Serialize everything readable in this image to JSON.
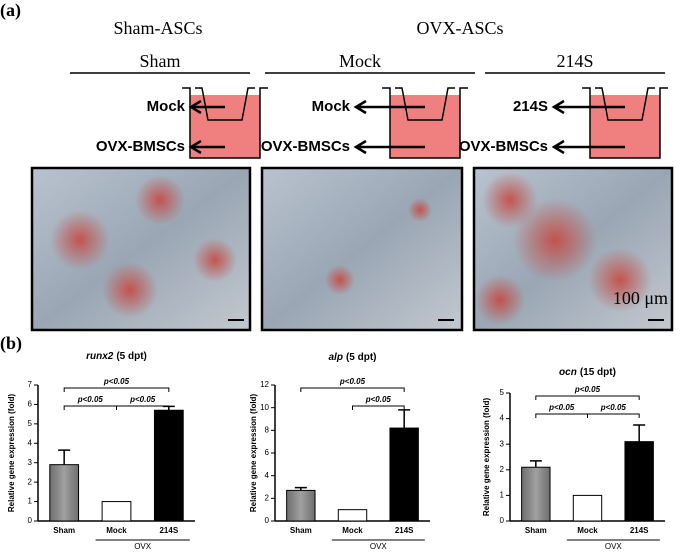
{
  "panel_a": {
    "label": "(a)",
    "groups": [
      "Sham-ASCs",
      "OVX-ASCs"
    ],
    "conditions": [
      "Sham",
      "Mock",
      "214S"
    ],
    "schematics": [
      {
        "top": "Mock",
        "bottom": "OVX-BMSCs"
      },
      {
        "top": "Mock",
        "bottom": "OVX-BMSCs"
      },
      {
        "top": "214S",
        "bottom": "OVX-BMSCs"
      }
    ],
    "scale_bar": "100 μm"
  },
  "panel_b": {
    "label": "(b)"
  },
  "chart_data": [
    {
      "type": "bar",
      "title_gene": "runx2",
      "title_note": "(5 dpt)",
      "y_label": "Relative gene expression (fold)",
      "categories": [
        "Sham",
        "Mock",
        "214S"
      ],
      "values": [
        2.9,
        1.0,
        5.7
      ],
      "errors": [
        0.75,
        0,
        0.2
      ],
      "colors": [
        "#8a8a8a",
        "#ffffff",
        "#000000"
      ],
      "ylim": [
        0,
        7
      ],
      "yticks": [
        0,
        1,
        2,
        3,
        4,
        5,
        6,
        7
      ],
      "significance": [
        {
          "label": "p<0.05",
          "between": [
            "Sham",
            "214S"
          ]
        },
        {
          "label": "p<0.05",
          "between": [
            "Sham",
            "Mock"
          ]
        },
        {
          "label": "p<0.05",
          "between": [
            "Mock",
            "214S"
          ]
        }
      ],
      "group": {
        "label": "OVX",
        "members": [
          "Mock",
          "214S"
        ]
      }
    },
    {
      "type": "bar",
      "title_gene": "alp",
      "title_note": "(5 dpt)",
      "y_label": "Relative gene expression (fold)",
      "categories": [
        "Sham",
        "Mock",
        "214S"
      ],
      "values": [
        2.7,
        1.0,
        8.2
      ],
      "errors": [
        0.25,
        0,
        1.6
      ],
      "colors": [
        "#8a8a8a",
        "#ffffff",
        "#000000"
      ],
      "ylim": [
        0,
        12
      ],
      "yticks": [
        0,
        2,
        4,
        6,
        8,
        10,
        12
      ],
      "significance": [
        {
          "label": "p<0.05",
          "between": [
            "Sham",
            "214S"
          ]
        },
        {
          "label": "p<0.05",
          "between": [
            "Mock",
            "214S"
          ]
        }
      ],
      "group": {
        "label": "OVX",
        "members": [
          "Mock",
          "214S"
        ]
      }
    },
    {
      "type": "bar",
      "title_gene": "ocn",
      "title_note": "(15 dpt)",
      "y_label": "Relative gene expression (fold)",
      "categories": [
        "Sham",
        "Mock",
        "214S"
      ],
      "values": [
        2.1,
        1.0,
        3.1
      ],
      "errors": [
        0.25,
        0,
        0.65
      ],
      "colors": [
        "#8a8a8a",
        "#ffffff",
        "#000000"
      ],
      "ylim": [
        0,
        5
      ],
      "yticks": [
        0,
        1,
        2,
        3,
        4,
        5
      ],
      "significance": [
        {
          "label": "p<0.05",
          "between": [
            "Sham",
            "214S"
          ]
        },
        {
          "label": "p<0.05",
          "between": [
            "Sham",
            "Mock"
          ]
        },
        {
          "label": "p<0.05",
          "between": [
            "Mock",
            "214S"
          ]
        }
      ],
      "group": {
        "label": "OVX",
        "members": [
          "Mock",
          "214S"
        ]
      }
    }
  ]
}
